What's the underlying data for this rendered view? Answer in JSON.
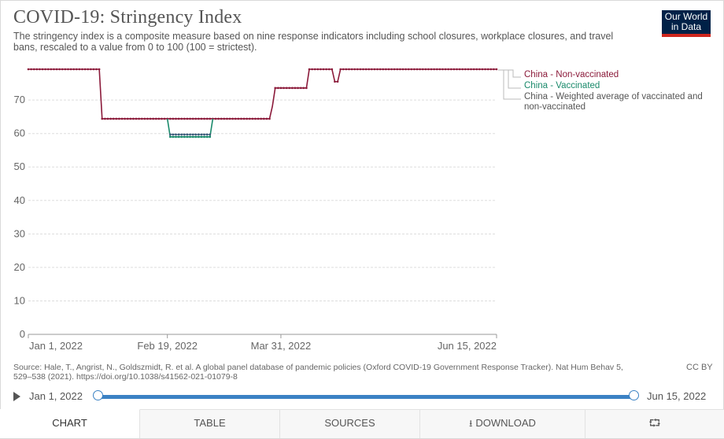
{
  "header": {
    "title": "COVID-19: Stringency Index",
    "subtitle": "The stringency index is a composite measure based on nine response indicators including school closures, workplace closures, and travel bans, rescaled to a value from 0 to 100 (100 = strictest).",
    "logo_line1": "Our World",
    "logo_line2": "in Data"
  },
  "chart_data": {
    "type": "line",
    "title": "COVID-19: Stringency Index",
    "xlabel": "",
    "ylabel": "",
    "ylim": [
      0,
      80
    ],
    "yticks": [
      0,
      10,
      20,
      30,
      40,
      50,
      60,
      70
    ],
    "xlim": [
      "2022-01-01",
      "2022-06-15"
    ],
    "xticks": [
      "Jan 1, 2022",
      "Feb 19, 2022",
      "Mar 31, 2022",
      "Jun 15, 2022"
    ],
    "grid": "horizontal dashed",
    "legend_placement": "right",
    "series": [
      {
        "name": "China - Non-vaccinated",
        "color": "#8b1a3a",
        "points": [
          {
            "x": "2022-01-01",
            "y": 79.2
          },
          {
            "x": "2022-01-26",
            "y": 79.2
          },
          {
            "x": "2022-01-27",
            "y": 64.4
          },
          {
            "x": "2022-03-27",
            "y": 64.4
          },
          {
            "x": "2022-03-28",
            "y": 68.1
          },
          {
            "x": "2022-03-29",
            "y": 73.6
          },
          {
            "x": "2022-04-09",
            "y": 73.6
          },
          {
            "x": "2022-04-10",
            "y": 79.2
          },
          {
            "x": "2022-04-18",
            "y": 79.2
          },
          {
            "x": "2022-04-19",
            "y": 75.5
          },
          {
            "x": "2022-04-20",
            "y": 75.5
          },
          {
            "x": "2022-04-21",
            "y": 79.2
          },
          {
            "x": "2022-06-15",
            "y": 79.2
          }
        ]
      },
      {
        "name": "China - Vaccinated",
        "color": "#1a8a6b",
        "points": [
          {
            "x": "2022-02-19",
            "y": 64.4
          },
          {
            "x": "2022-02-20",
            "y": 59.0
          },
          {
            "x": "2022-03-06",
            "y": 59.0
          },
          {
            "x": "2022-03-07",
            "y": 64.4
          }
        ]
      },
      {
        "name": "China - Weighted average of vaccinated and non-vaccinated",
        "color": "#3a5a7a",
        "points": [
          {
            "x": "2022-02-20",
            "y": 59.7
          },
          {
            "x": "2022-03-06",
            "y": 59.7
          }
        ]
      }
    ]
  },
  "legend": {
    "item1": "China - Non-vaccinated",
    "item2": "China - Vaccinated",
    "item3_line1": "China - Weighted average of vaccinated and",
    "item3_line2": "non-vaccinated"
  },
  "footer": {
    "source_line1": "Source: Hale, T., Angrist, N., Goldszmidt, R. et al. A global panel database of pandemic policies (Oxford COVID-19 Government Response Tracker). Nat Hum Behav 5,",
    "source_line2": "529–538 (2021). https://doi.org/10.1038/s41562-021-01079-8",
    "license": "CC BY"
  },
  "timeline": {
    "start_label": "Jan 1, 2022",
    "end_label": "Jun 15, 2022"
  },
  "tabs": {
    "chart": "CHART",
    "table": "TABLE",
    "sources": "SOURCES",
    "download": "DOWNLOAD"
  },
  "colors": {
    "non_vaccinated": "#8b1a3a",
    "vaccinated": "#1a8a6b",
    "weighted": "#3a5a7a",
    "accent": "#3b82c4"
  }
}
